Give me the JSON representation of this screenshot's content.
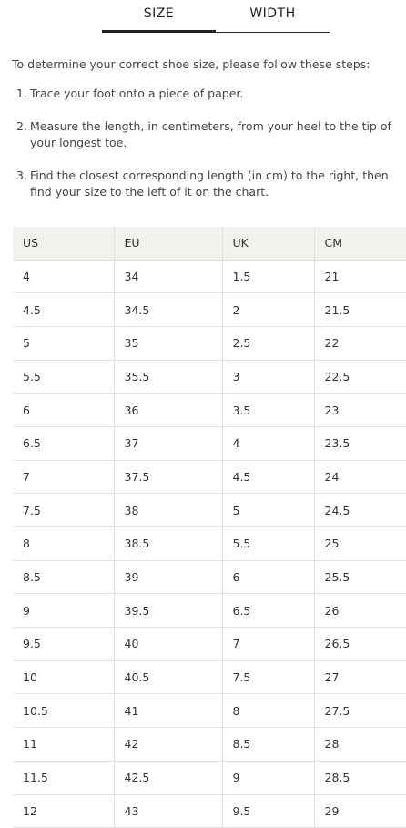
{
  "tabs": [
    {
      "label": "SIZE",
      "active": true
    },
    {
      "label": "WIDTH",
      "active": false
    }
  ],
  "intro": "To determine your correct shoe size, please follow these steps:",
  "steps": [
    {
      "num": "1.",
      "text": "Trace your foot onto a piece of paper."
    },
    {
      "num": "2.",
      "text": "Measure the length, in centimeters, from your heel to the tip of your longest toe."
    },
    {
      "num": "3.",
      "text": "Find the closest corresponding length (in cm) to the right, then find your size to the left of it on the chart."
    }
  ],
  "table": {
    "headers": [
      "US",
      "EU",
      "UK",
      "CM"
    ],
    "rows": [
      [
        "4",
        "34",
        "1.5",
        "21"
      ],
      [
        "4.5",
        "34.5",
        "2",
        "21.5"
      ],
      [
        "5",
        "35",
        "2.5",
        "22"
      ],
      [
        "5.5",
        "35.5",
        "3",
        "22.5"
      ],
      [
        "6",
        "36",
        "3.5",
        "23"
      ],
      [
        "6.5",
        "37",
        "4",
        "23.5"
      ],
      [
        "7",
        "37.5",
        "4.5",
        "24"
      ],
      [
        "7.5",
        "38",
        "5",
        "24.5"
      ],
      [
        "8",
        "38.5",
        "5.5",
        "25"
      ],
      [
        "8.5",
        "39",
        "6",
        "25.5"
      ],
      [
        "9",
        "39.5",
        "6.5",
        "26"
      ],
      [
        "9.5",
        "40",
        "7",
        "26.5"
      ],
      [
        "10",
        "40.5",
        "7.5",
        "27"
      ],
      [
        "10.5",
        "41",
        "8",
        "27.5"
      ],
      [
        "11",
        "42",
        "8.5",
        "28"
      ],
      [
        "11.5",
        "42.5",
        "9",
        "28.5"
      ],
      [
        "12",
        "43",
        "9.5",
        "29"
      ]
    ]
  }
}
